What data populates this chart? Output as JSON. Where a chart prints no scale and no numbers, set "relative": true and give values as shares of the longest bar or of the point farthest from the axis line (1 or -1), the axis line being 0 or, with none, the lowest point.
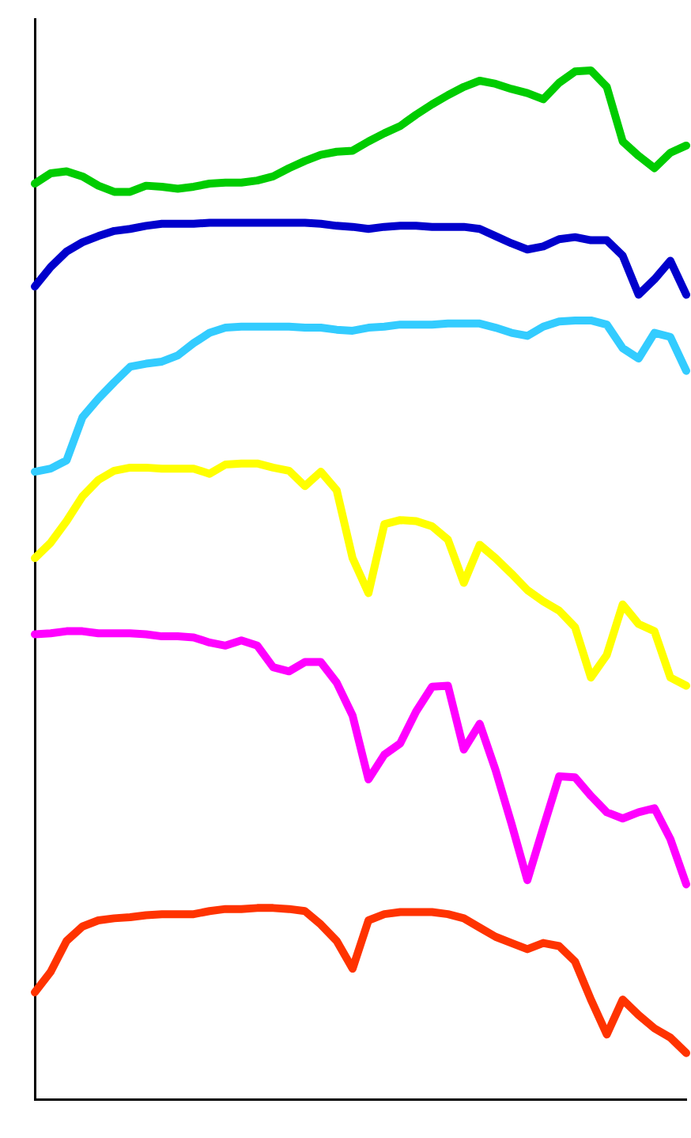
{
  "chart_data": {
    "type": "line",
    "relative": true,
    "grid": false,
    "legend": false,
    "marker": "none",
    "line_style": "solid",
    "categories": [
      null,
      null,
      null,
      null,
      null,
      null,
      null,
      null,
      null,
      null,
      null,
      null,
      null,
      null,
      null,
      null,
      null,
      null,
      null,
      null,
      null,
      null,
      null,
      null,
      null,
      null,
      null,
      null,
      null,
      null,
      null,
      null,
      null,
      null,
      null,
      null,
      null,
      null,
      null,
      null,
      null,
      null
    ],
    "series": [
      {
        "color": "#00cc00",
        "values": [
          0.89,
          0.9,
          0.902,
          0.897,
          0.888,
          0.882,
          0.882,
          0.888,
          0.887,
          0.885,
          0.887,
          0.89,
          0.891,
          0.891,
          0.893,
          0.897,
          0.905,
          0.912,
          0.918,
          0.921,
          0.922,
          0.931,
          0.939,
          0.946,
          0.957,
          0.967,
          0.976,
          0.984,
          0.99,
          0.987,
          0.982,
          0.978,
          0.972,
          0.988,
          0.999,
          1,
          0.984,
          0.931,
          0.917,
          0.905,
          0.92,
          0.927
        ]
      },
      {
        "color": "#0000cc",
        "values": [
          0.79,
          0.809,
          0.824,
          0.833,
          0.839,
          0.844,
          0.846,
          0.849,
          0.851,
          0.851,
          0.851,
          0.852,
          0.852,
          0.852,
          0.852,
          0.852,
          0.852,
          0.852,
          0.851,
          0.849,
          0.848,
          0.846,
          0.848,
          0.849,
          0.849,
          0.848,
          0.848,
          0.848,
          0.846,
          0.839,
          0.832,
          0.826,
          0.829,
          0.836,
          0.838,
          0.835,
          0.835,
          0.82,
          0.782,
          0.797,
          0.815,
          0.782
        ]
      },
      {
        "color": "#33ccff",
        "values": [
          0.61,
          0.613,
          0.621,
          0.663,
          0.681,
          0.697,
          0.712,
          0.715,
          0.717,
          0.723,
          0.735,
          0.745,
          0.75,
          0.751,
          0.751,
          0.751,
          0.751,
          0.75,
          0.75,
          0.748,
          0.747,
          0.75,
          0.751,
          0.753,
          0.753,
          0.753,
          0.754,
          0.754,
          0.754,
          0.75,
          0.745,
          0.742,
          0.751,
          0.756,
          0.757,
          0.757,
          0.753,
          0.73,
          0.72,
          0.745,
          0.741,
          0.708
        ]
      },
      {
        "color": "#ffff00",
        "values": [
          0.526,
          0.541,
          0.562,
          0.586,
          0.602,
          0.611,
          0.614,
          0.614,
          0.613,
          0.613,
          0.613,
          0.608,
          0.617,
          0.618,
          0.618,
          0.614,
          0.611,
          0.596,
          0.61,
          0.592,
          0.526,
          0.492,
          0.559,
          0.563,
          0.562,
          0.557,
          0.544,
          0.502,
          0.539,
          0.526,
          0.511,
          0.495,
          0.484,
          0.475,
          0.459,
          0.41,
          0.432,
          0.481,
          0.462,
          0.455,
          0.41,
          0.402
        ]
      },
      {
        "color": "#ff00ff",
        "values": [
          0.452,
          0.453,
          0.455,
          0.455,
          0.453,
          0.453,
          0.453,
          0.452,
          0.45,
          0.45,
          0.449,
          0.444,
          0.441,
          0.446,
          0.441,
          0.42,
          0.416,
          0.425,
          0.425,
          0.405,
          0.373,
          0.311,
          0.335,
          0.346,
          0.377,
          0.401,
          0.402,
          0.34,
          0.365,
          0.32,
          0.268,
          0.213,
          0.264,
          0.314,
          0.313,
          0.295,
          0.279,
          0.273,
          0.279,
          0.283,
          0.253,
          0.209
        ]
      },
      {
        "color": "#ff3300",
        "values": [
          0.104,
          0.124,
          0.154,
          0.168,
          0.174,
          0.176,
          0.177,
          0.179,
          0.18,
          0.18,
          0.18,
          0.183,
          0.185,
          0.185,
          0.186,
          0.186,
          0.185,
          0.183,
          0.17,
          0.154,
          0.127,
          0.174,
          0.18,
          0.182,
          0.182,
          0.182,
          0.18,
          0.176,
          0.167,
          0.158,
          0.152,
          0.146,
          0.152,
          0.149,
          0.134,
          0.097,
          0.063,
          0.097,
          0.082,
          0.069,
          0.06,
          0.045
        ]
      }
    ]
  }
}
